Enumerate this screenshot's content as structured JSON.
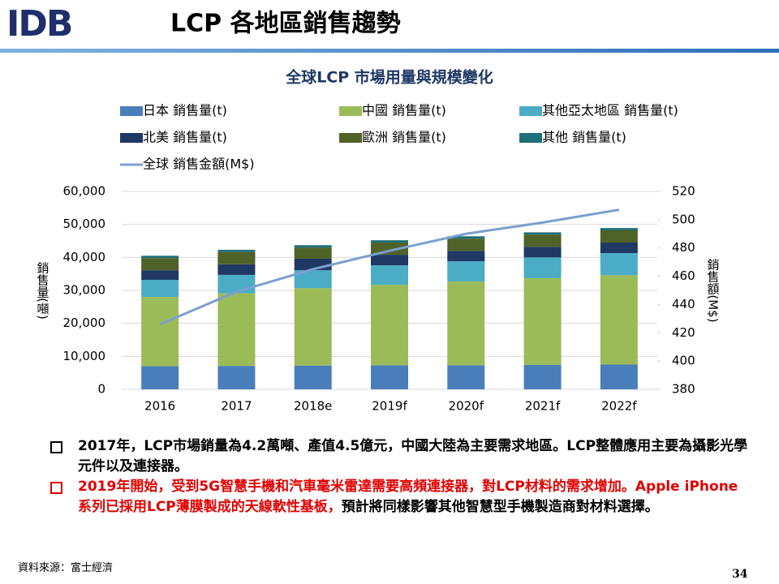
{
  "logo": "IDB",
  "header": {
    "title": "LCP 各地區銷售趨勢"
  },
  "chart_data": {
    "type": "bar",
    "stacked": true,
    "title": "全球LCP 市場用量與規模變化",
    "y_label": "銷售量(噸)",
    "y2_label": "銷售額(M$)",
    "categories": [
      "2016",
      "2017",
      "2018e",
      "2019f",
      "2020f",
      "2021f",
      "2022f"
    ],
    "series": [
      {
        "name": "日本 銷售量(t)",
        "color": "#4a7ebb",
        "values": [
          7000,
          7100,
          7200,
          7300,
          7300,
          7400,
          7500
        ]
      },
      {
        "name": "中國 銷售量(t)",
        "color": "#9bbb59",
        "values": [
          21000,
          22000,
          23500,
          24400,
          25400,
          26300,
          27100
        ]
      },
      {
        "name": "其他亞太地區 銷售量(t)",
        "color": "#4bacc6",
        "values": [
          5200,
          5600,
          5400,
          5900,
          6100,
          6300,
          6700
        ]
      },
      {
        "name": "北美 銷售量(t)",
        "color": "#1f3864",
        "values": [
          2900,
          3200,
          3500,
          3200,
          3200,
          3200,
          3200
        ]
      },
      {
        "name": "歐洲 銷售量(t)",
        "color": "#4f6228",
        "values": [
          3700,
          3700,
          3400,
          3700,
          3700,
          3700,
          3700
        ]
      },
      {
        "name": "其他 銷售量(t)",
        "color": "#1f6f7a",
        "values": [
          700,
          700,
          700,
          700,
          700,
          700,
          700
        ]
      },
      {
        "name": "全球 銷售金額(M$)",
        "color": "#7aa0cf",
        "type": "line",
        "axis": "y2",
        "values": [
          426,
          449,
          465,
          478,
          490,
          498,
          507
        ]
      }
    ],
    "ylim": [
      0,
      60000
    ],
    "yticks": [
      0,
      {
        "value": 10000,
        "label": "10,000"
      },
      {
        "value": 20000,
        "label": "20,000"
      },
      {
        "value": 30000,
        "label": "30,000"
      },
      {
        "value": 40000,
        "label": "40,000"
      },
      {
        "value": 50000,
        "label": "50,000"
      },
      {
        "value": 60000,
        "label": "60,000"
      }
    ],
    "y2lim": [
      380,
      520
    ],
    "y2ticks": [
      380,
      400,
      420,
      440,
      460,
      480,
      500,
      520
    ],
    "grid": true,
    "legend": "top"
  },
  "notes": [
    [
      "2017年，LCP市場銷量為4.2萬噸、產值4.5億元，中國大陸為主要需求地區。LCP整體應用主要為攝影光學元件以及連接器。"
    ],
    [
      "2019年開始，受到5G智慧手機和汽車毫米雷達需要高頻連接器，對LCP材料的需求增加。Apple iPhone系列已採用LCP薄膜製成的天線軟性基板，",
      "預計將同樣影響其他智慧型手機製造商對材料選擇。"
    ]
  ],
  "source": "資料來源：富士經濟",
  "page_number": "34"
}
